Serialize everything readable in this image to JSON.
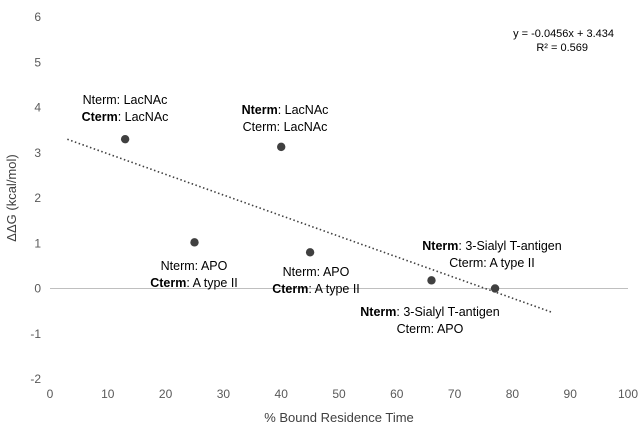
{
  "chart_data": {
    "type": "scatter",
    "title": "",
    "xlabel": "% Bound Residence Time",
    "ylabel": "ΔΔG (kcal/mol)",
    "xlim": [
      0,
      100
    ],
    "ylim": [
      -2,
      6
    ],
    "xticks": [
      0,
      10,
      20,
      30,
      40,
      50,
      60,
      70,
      80,
      90,
      100
    ],
    "yticks": [
      -2,
      -1,
      0,
      1,
      2,
      3,
      4,
      5,
      6
    ],
    "grid": false,
    "legend": "none",
    "point_color": "#404040",
    "points": [
      {
        "x": 13,
        "y": 3.3,
        "label": [
          {
            "bold": "",
            "rest": "Nterm: LacNAc"
          },
          {
            "bold": "Cterm",
            "rest": ": LacNAc"
          }
        ]
      },
      {
        "x": 40,
        "y": 3.13,
        "label": [
          {
            "bold": "Nterm",
            "rest": ": LacNAc"
          },
          {
            "bold": "",
            "rest": "Cterm: LacNAc"
          }
        ]
      },
      {
        "x": 25,
        "y": 1.02,
        "label": [
          {
            "bold": "",
            "rest": "Nterm: APO"
          },
          {
            "bold": "Cterm",
            "rest": ": A type II"
          }
        ]
      },
      {
        "x": 45,
        "y": 0.8,
        "label": [
          {
            "bold": "",
            "rest": "Nterm: APO"
          },
          {
            "bold": "Cterm",
            "rest": ": A type II"
          }
        ]
      },
      {
        "x": 66,
        "y": 0.18,
        "label": [
          {
            "bold": "Nterm",
            "rest": ": 3-Sialyl T-antigen"
          },
          {
            "bold": "",
            "rest": "Cterm: APO"
          }
        ]
      },
      {
        "x": 77,
        "y": 0.0,
        "label": [
          {
            "bold": "Nterm",
            "rest": ": 3-Sialyl T-antigen"
          },
          {
            "bold": "",
            "rest": "Cterm: A type II"
          }
        ]
      }
    ],
    "trendline": {
      "type": "linear",
      "slope": -0.0456,
      "intercept": 3.434,
      "x_range": [
        3,
        87
      ],
      "style": "dotted",
      "equation": "y = -0.0456x + 3.434",
      "r_squared": "R² = 0.569"
    }
  }
}
